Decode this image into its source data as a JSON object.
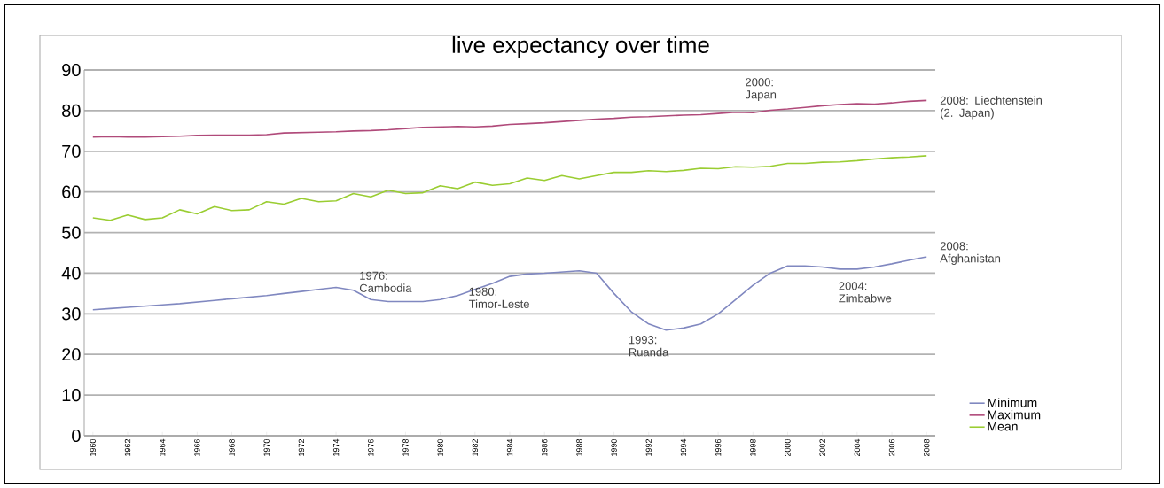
{
  "chart_data": {
    "type": "line",
    "title": "live expectancy over time",
    "x": [
      1960,
      1961,
      1962,
      1963,
      1964,
      1965,
      1966,
      1967,
      1968,
      1969,
      1970,
      1971,
      1972,
      1973,
      1974,
      1975,
      1976,
      1977,
      1978,
      1979,
      1980,
      1981,
      1982,
      1983,
      1984,
      1985,
      1986,
      1987,
      1988,
      1989,
      1990,
      1991,
      1992,
      1993,
      1994,
      1995,
      1996,
      1997,
      1998,
      1999,
      2000,
      2001,
      2002,
      2003,
      2004,
      2005,
      2006,
      2007,
      2008
    ],
    "series": [
      {
        "name": "Minimum",
        "color": "#8088c0",
        "values": [
          31.0,
          31.3,
          31.6,
          31.9,
          32.2,
          32.5,
          32.9,
          33.3,
          33.7,
          34.1,
          34.5,
          35.0,
          35.5,
          36.0,
          36.5,
          35.8,
          33.5,
          33.0,
          33.0,
          33.0,
          33.5,
          34.5,
          36.0,
          37.5,
          39.2,
          39.8,
          40.0,
          40.3,
          40.6,
          40.0,
          35.0,
          30.5,
          27.5,
          26.0,
          26.5,
          27.5,
          30.0,
          33.5,
          37.0,
          40.0,
          41.8,
          41.8,
          41.5,
          41.0,
          41.0,
          41.5,
          42.3,
          43.2,
          44.0
        ]
      },
      {
        "name": "Maximum",
        "color": "#b04a7a",
        "values": [
          73.5,
          73.6,
          73.5,
          73.5,
          73.6,
          73.7,
          73.9,
          74.0,
          74.0,
          74.0,
          74.1,
          74.5,
          74.6,
          74.7,
          74.8,
          75.0,
          75.1,
          75.3,
          75.6,
          75.9,
          76.0,
          76.1,
          76.0,
          76.2,
          76.6,
          76.8,
          77.0,
          77.3,
          77.6,
          77.9,
          78.1,
          78.4,
          78.5,
          78.7,
          78.9,
          79.0,
          79.3,
          79.6,
          79.5,
          80.1,
          80.4,
          80.8,
          81.2,
          81.5,
          81.7,
          81.6,
          81.9,
          82.3,
          82.5
        ]
      },
      {
        "name": "Mean",
        "color": "#9acd32",
        "values": [
          53.6,
          53.0,
          54.3,
          53.2,
          53.6,
          55.6,
          54.6,
          56.4,
          55.4,
          55.6,
          57.6,
          57.0,
          58.4,
          57.6,
          57.8,
          59.6,
          58.8,
          60.4,
          59.6,
          59.8,
          61.5,
          60.8,
          62.4,
          61.6,
          62.0,
          63.4,
          62.8,
          64.0,
          63.2,
          64.0,
          64.8,
          64.8,
          65.2,
          65.0,
          65.3,
          65.8,
          65.7,
          66.2,
          66.1,
          66.3,
          67.0,
          67.0,
          67.3,
          67.4,
          67.7,
          68.1,
          68.4,
          68.6,
          68.9
        ]
      }
    ],
    "xlim": [
      1959.5,
      2008.5
    ],
    "xticks": [
      1960,
      1962,
      1964,
      1966,
      1968,
      1970,
      1972,
      1974,
      1976,
      1978,
      1980,
      1982,
      1984,
      1986,
      1988,
      1990,
      1992,
      1994,
      1996,
      1998,
      2000,
      2002,
      2004,
      2006,
      2008
    ],
    "ylim": [
      0,
      90
    ],
    "yticks": [
      0,
      10,
      20,
      30,
      40,
      50,
      60,
      70,
      80,
      90
    ],
    "grid": "y",
    "legend": "bottom right",
    "annotations": [
      {
        "text": "1976: Cambodia",
        "x": 1976,
        "y": 33.5
      },
      {
        "text": "1980: Timor-Leste",
        "x": 1980,
        "y": 33.5
      },
      {
        "text": "1993: Ruanda",
        "x": 1993,
        "y": 26.0
      },
      {
        "text": "2000: Japan",
        "x": 2000,
        "y": 80.4
      },
      {
        "text": "2004: Zimbabwe",
        "x": 2004,
        "y": 41.0
      },
      {
        "text": "2008: Liechtenstein (2. Japan)",
        "x": 2008,
        "y": 82.5
      },
      {
        "text": "2008: Afghanistan",
        "x": 2008,
        "y": 44.0
      }
    ]
  }
}
